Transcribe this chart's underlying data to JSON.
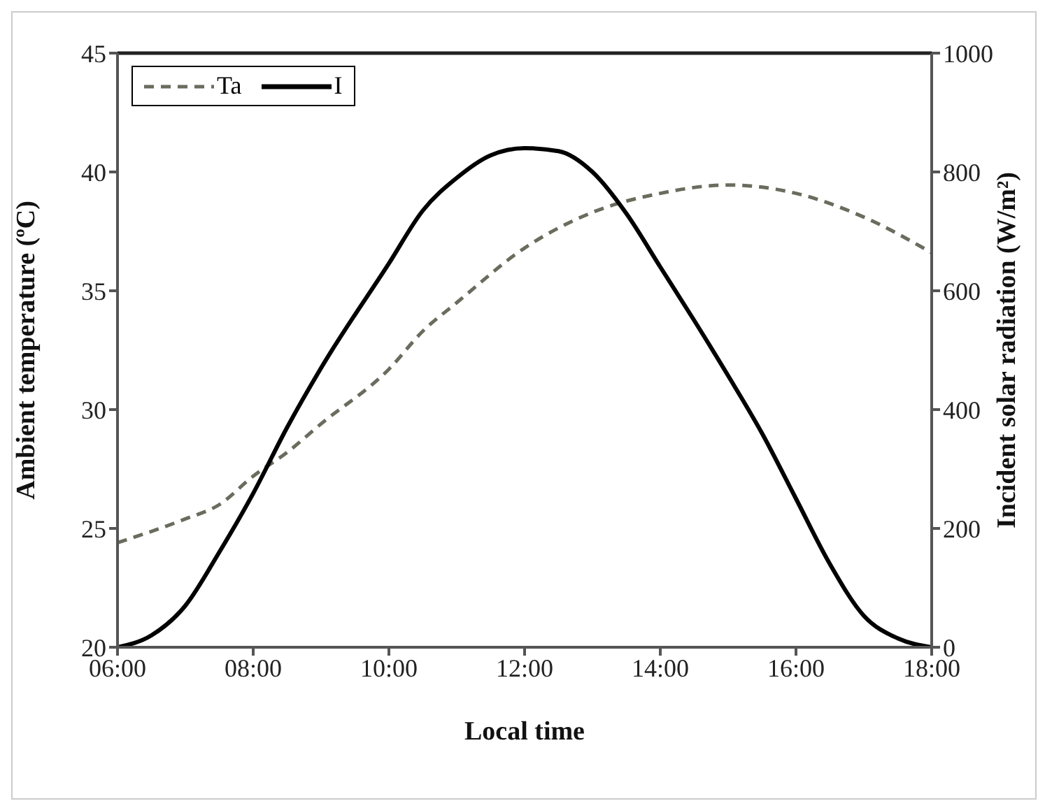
{
  "chart_data": {
    "type": "line",
    "xlabel": "Local time",
    "ylabel": "Ambient temperature (ºC)",
    "y2label": "Incident solar radiation (W/m²)",
    "xlim": [
      6,
      18
    ],
    "xticks": [
      {
        "value": 6,
        "label": "06:00"
      },
      {
        "value": 8,
        "label": "08:00"
      },
      {
        "value": 10,
        "label": "10:00"
      },
      {
        "value": 12,
        "label": "12:00"
      },
      {
        "value": 14,
        "label": "14:00"
      },
      {
        "value": 16,
        "label": "16:00"
      },
      {
        "value": 18,
        "label": "18:00"
      }
    ],
    "ylim": [
      20,
      45
    ],
    "yticks": [
      20,
      25,
      30,
      35,
      40,
      45
    ],
    "y2lim": [
      0,
      1000
    ],
    "y2ticks": [
      0,
      200,
      400,
      600,
      800,
      1000
    ],
    "grid": false,
    "legend": "top left",
    "marker": "none",
    "series": [
      {
        "name": "Ta",
        "color": "#6b6b5e",
        "line_style": "dashed",
        "x": [
          6,
          7,
          7.5,
          8,
          8.5,
          9,
          10,
          10.5,
          11,
          12,
          13,
          14,
          15,
          16,
          17,
          18
        ],
        "values": [
          24.4,
          25.4,
          26,
          27.2,
          28.2,
          29.4,
          31.7,
          33.3,
          34.5,
          36.8,
          38.3,
          39.1,
          39.45,
          39.1,
          38.1,
          36.6
        ]
      },
      {
        "name": "I",
        "color": "#000000",
        "line_style": "solid",
        "axis": "y2",
        "x": [
          6,
          6.5,
          7,
          7.5,
          8,
          8.5,
          9,
          10,
          10.5,
          11,
          11.5,
          12,
          12.5,
          13,
          13.5,
          14,
          14.5,
          15,
          15.5,
          16,
          16.5,
          17,
          17.5,
          18
        ],
        "values": [
          0,
          20,
          70,
          160,
          259,
          370,
          470,
          646,
          735,
          790,
          828,
          840,
          835,
          800,
          730,
          640,
          550,
          457,
          360,
          250,
          140,
          53,
          15,
          0
        ]
      }
    ]
  }
}
